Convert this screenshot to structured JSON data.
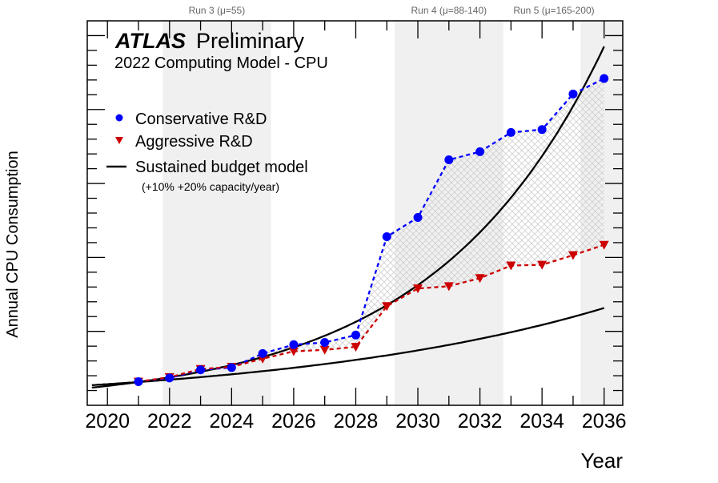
{
  "chart_data": {
    "type": "line",
    "title": "ATLAS Preliminary",
    "title_bold": "ATLAS",
    "title_rest": "Preliminary",
    "subtitle": "2022 Computing Model - CPU",
    "xlabel": "Year",
    "ylabel": "Annual CPU Consumption",
    "xlim": [
      2019.35,
      2036.6
    ],
    "ylim": [
      0,
      5.2
    ],
    "x_ticks": [
      "2020",
      "2022",
      "2024",
      "2026",
      "2028",
      "2030",
      "2032",
      "2034",
      "2036"
    ],
    "y_tick_labels_shown": false,
    "grid": false,
    "runs": [
      {
        "label": "Run 3 (μ=55)",
        "start": 2021.78,
        "end": 2025.27
      },
      {
        "label": "Run 4 (μ=88-140)",
        "start": 2029.25,
        "end": 2032.75
      },
      {
        "label": "Run 5 (μ=165-200)",
        "start": 2035.24,
        "end": 2036.6
      }
    ],
    "x": [
      2021,
      2022,
      2023,
      2024,
      2025,
      2026,
      2027,
      2028,
      2029,
      2030,
      2031,
      2032,
      2033,
      2034,
      2035,
      2036
    ],
    "series": [
      {
        "name": "Conservative R&D",
        "color": "#0000ff",
        "marker": "circle",
        "values": [
          0.32,
          0.37,
          0.48,
          0.51,
          0.7,
          0.82,
          0.85,
          0.95,
          2.28,
          2.54,
          3.32,
          3.43,
          3.69,
          3.73,
          4.21,
          4.42
        ]
      },
      {
        "name": "Aggressive R&D",
        "color": "#cc0000",
        "marker": "triangle-down",
        "values": [
          0.32,
          0.38,
          0.49,
          0.52,
          0.63,
          0.73,
          0.75,
          0.79,
          1.34,
          1.58,
          1.61,
          1.72,
          1.89,
          1.9,
          2.03,
          2.17
        ]
      }
    ],
    "budget_model": {
      "name": "Sustained budget model",
      "note": "(+10% +20% capacity/year)",
      "base_year": 2021,
      "base_value": 0.315,
      "growth_rates": [
        0.1,
        0.2
      ],
      "x_range": [
        2019.5,
        2036
      ],
      "color": "#000000"
    },
    "legend_placement": "top-left"
  }
}
